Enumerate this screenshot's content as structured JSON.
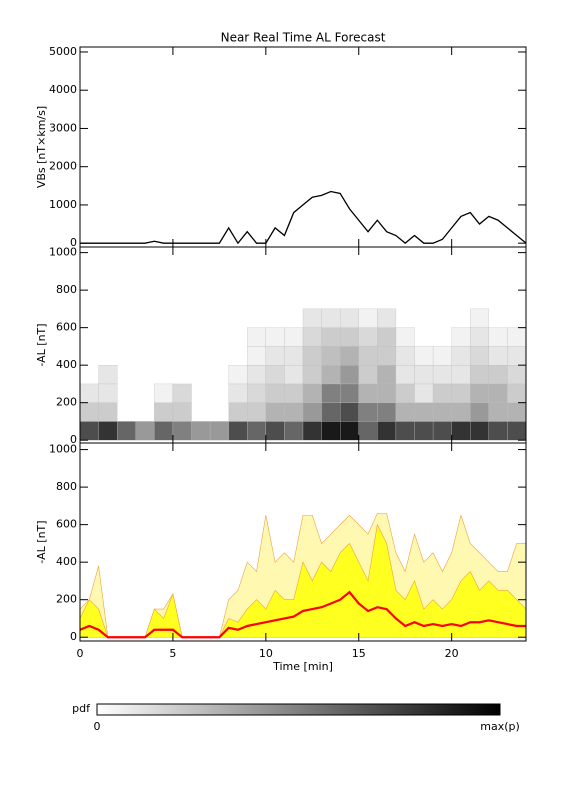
{
  "chart_data": [
    {
      "type": "line",
      "title": "Near Real Time AL Forecast",
      "ylabel": "VBs [nT×km/s]",
      "xlim": [
        0,
        24
      ],
      "ylim": [
        -100,
        5130
      ],
      "xticks": [
        0,
        5,
        10,
        15,
        20
      ],
      "yticks": [
        0,
        1000,
        2000,
        3000,
        4000,
        5000
      ],
      "x": [
        0,
        0.5,
        1,
        1.5,
        2,
        2.5,
        3,
        3.5,
        4,
        4.5,
        5,
        5.5,
        6,
        6.5,
        7,
        7.5,
        8,
        8.5,
        9,
        9.5,
        10,
        10.5,
        11,
        11.5,
        12,
        12.5,
        13,
        13.5,
        14,
        14.5,
        15,
        15.5,
        16,
        16.5,
        17,
        17.5,
        18,
        18.5,
        19,
        19.5,
        20,
        20.5,
        21,
        21.5,
        22,
        22.5,
        23,
        23.5,
        24
      ],
      "series": [
        {
          "color": "#000000",
          "values": [
            0,
            0,
            0,
            0,
            0,
            0,
            0,
            0,
            50,
            0,
            0,
            0,
            0,
            0,
            0,
            0,
            400,
            0,
            300,
            0,
            0,
            400,
            200,
            800,
            1000,
            1200,
            1250,
            1350,
            1300,
            900,
            600,
            300,
            600,
            300,
            200,
            0,
            200,
            0,
            0,
            100,
            400,
            700,
            800,
            500,
            700,
            600,
            400,
            200,
            0
          ]
        }
      ]
    },
    {
      "type": "heatmap",
      "ylabel": "-AL [nT]",
      "xlim": [
        0,
        24
      ],
      "ylim": [
        -15,
        1030
      ],
      "xticks": [
        0,
        5,
        10,
        15,
        20
      ],
      "yticks": [
        0,
        200,
        400,
        600,
        800,
        1000
      ],
      "xbins": [
        0,
        1,
        2,
        3,
        4,
        5,
        6,
        7,
        8,
        9,
        10,
        11,
        12,
        13,
        14,
        15,
        16,
        17,
        18,
        19,
        20,
        21,
        22,
        23,
        24
      ],
      "ybins": [
        0,
        100,
        200,
        300,
        400,
        500,
        600,
        700
      ],
      "values": [
        [
          0.7,
          0.8,
          0.6,
          0.4,
          0.6,
          0.5,
          0.4,
          0.4,
          0.7,
          0.6,
          0.7,
          0.6,
          0.8,
          0.9,
          0.9,
          0.6,
          0.8,
          0.7,
          0.7,
          0.7,
          0.8,
          0.8,
          0.7,
          0.7
        ],
        [
          0.2,
          0.2,
          0,
          0,
          0.2,
          0.2,
          0,
          0,
          0.2,
          0.2,
          0.3,
          0.3,
          0.4,
          0.6,
          0.7,
          0.5,
          0.5,
          0.3,
          0.3,
          0.3,
          0.3,
          0.4,
          0.3,
          0.3
        ],
        [
          0.1,
          0.1,
          0,
          0,
          0.05,
          0.15,
          0,
          0,
          0.1,
          0.15,
          0.2,
          0.2,
          0.3,
          0.5,
          0.5,
          0.3,
          0.3,
          0.2,
          0.1,
          0.2,
          0.2,
          0.3,
          0.3,
          0.2
        ],
        [
          0,
          0.1,
          0,
          0,
          0,
          0,
          0,
          0,
          0.05,
          0.1,
          0.15,
          0.1,
          0.2,
          0.3,
          0.4,
          0.2,
          0.3,
          0.1,
          0.1,
          0.1,
          0.1,
          0.2,
          0.2,
          0.15
        ],
        [
          0,
          0,
          0,
          0,
          0,
          0,
          0,
          0,
          0,
          0.05,
          0.1,
          0.1,
          0.2,
          0.25,
          0.3,
          0.2,
          0.2,
          0.1,
          0.05,
          0.05,
          0.1,
          0.15,
          0.1,
          0.1
        ],
        [
          0,
          0,
          0,
          0,
          0,
          0,
          0,
          0,
          0,
          0.05,
          0.05,
          0.05,
          0.15,
          0.2,
          0.2,
          0.15,
          0.2,
          0.05,
          0,
          0,
          0.05,
          0.1,
          0.05,
          0.05
        ],
        [
          0,
          0,
          0,
          0,
          0,
          0,
          0,
          0,
          0,
          0,
          0,
          0,
          0.1,
          0.1,
          0.1,
          0.05,
          0.1,
          0,
          0,
          0,
          0,
          0.05,
          0,
          0
        ]
      ],
      "colorbar": {
        "label": "pdf",
        "min_label": "0",
        "max_label": "max(p)"
      }
    },
    {
      "type": "area",
      "ylabel": "-AL [nT]",
      "xlabel": "Time [min]",
      "xlim": [
        0,
        24
      ],
      "ylim": [
        -20,
        1035
      ],
      "xticks": [
        0,
        5,
        10,
        15,
        20
      ],
      "yticks": [
        0,
        200,
        400,
        600,
        800,
        1000
      ],
      "x": [
        0,
        0.5,
        1,
        1.5,
        2,
        2.5,
        3,
        3.5,
        4,
        4.5,
        5,
        5.5,
        6,
        6.5,
        7,
        7.5,
        8,
        8.5,
        9,
        9.5,
        10,
        10.5,
        11,
        11.5,
        12,
        12.5,
        13,
        13.5,
        14,
        14.5,
        15,
        15.5,
        16,
        16.5,
        17,
        17.5,
        18,
        18.5,
        19,
        19.5,
        20,
        20.5,
        21,
        21.5,
        22,
        22.5,
        23,
        23.5,
        24
      ],
      "series": [
        {
          "color": "#fff8b0",
          "values": [
            150,
            200,
            380,
            0,
            0,
            0,
            0,
            0,
            150,
            150,
            230,
            0,
            0,
            0,
            0,
            0,
            200,
            250,
            400,
            350,
            650,
            400,
            450,
            400,
            650,
            650,
            500,
            550,
            600,
            650,
            600,
            550,
            660,
            660,
            450,
            350,
            550,
            400,
            450,
            350,
            450,
            650,
            500,
            450,
            400,
            350,
            350,
            500,
            500
          ]
        },
        {
          "color": "#ffff20",
          "values": [
            100,
            200,
            150,
            0,
            0,
            0,
            0,
            0,
            150,
            100,
            230,
            0,
            0,
            0,
            0,
            0,
            100,
            80,
            150,
            200,
            150,
            250,
            200,
            200,
            400,
            300,
            400,
            350,
            450,
            500,
            400,
            300,
            600,
            500,
            250,
            200,
            300,
            150,
            200,
            150,
            200,
            300,
            350,
            250,
            300,
            250,
            250,
            200,
            150
          ]
        },
        {
          "color": "#ff0000",
          "values": [
            40,
            60,
            40,
            0,
            0,
            0,
            0,
            0,
            40,
            40,
            40,
            0,
            0,
            0,
            0,
            0,
            50,
            40,
            60,
            70,
            80,
            90,
            100,
            110,
            140,
            150,
            160,
            180,
            200,
            240,
            180,
            140,
            160,
            150,
            100,
            60,
            80,
            60,
            70,
            60,
            70,
            60,
            80,
            80,
            90,
            80,
            70,
            60,
            60
          ]
        }
      ]
    }
  ]
}
